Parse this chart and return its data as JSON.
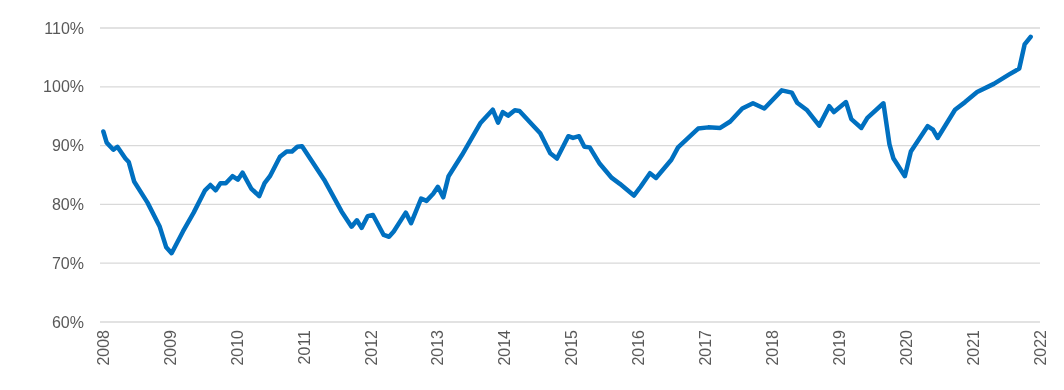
{
  "chart_data": {
    "type": "line",
    "xlim": [
      2007.95,
      2022
    ],
    "ylim": [
      60,
      110
    ],
    "xticks": [
      2008,
      2009,
      2010,
      2011,
      2012,
      2013,
      2014,
      2015,
      2016,
      2017,
      2018,
      2019,
      2020,
      2021,
      2022
    ],
    "yticks": [
      {
        "value": 60,
        "label": "60%"
      },
      {
        "value": 70,
        "label": "70%"
      },
      {
        "value": 80,
        "label": "80%"
      },
      {
        "value": 90,
        "label": "90%"
      },
      {
        "value": 100,
        "label": "100%"
      },
      {
        "value": 110,
        "label": "110%"
      }
    ],
    "grid": "y",
    "marker": "none",
    "line_style": "solid",
    "series": [
      {
        "color": "#0070c0",
        "x": [
          2008.0,
          2008.05,
          2008.15,
          2008.21,
          2008.33,
          2008.38,
          2008.46,
          2008.66,
          2008.84,
          2008.94,
          2009.02,
          2009.19,
          2009.35,
          2009.52,
          2009.6,
          2009.68,
          2009.75,
          2009.83,
          2009.93,
          2010.01,
          2010.08,
          2010.21,
          2010.33,
          2010.41,
          2010.49,
          2010.64,
          2010.74,
          2010.82,
          2010.9,
          2010.97,
          2011.3,
          2011.56,
          2011.71,
          2011.79,
          2011.86,
          2011.95,
          2012.03,
          2012.19,
          2012.27,
          2012.34,
          2012.52,
          2012.6,
          2012.75,
          2012.83,
          2012.93,
          2013.0,
          2013.08,
          2013.16,
          2013.36,
          2013.64,
          2013.82,
          2013.9,
          2013.97,
          2014.05,
          2014.15,
          2014.22,
          2014.53,
          2014.68,
          2014.78,
          2014.95,
          2015.02,
          2015.11,
          2015.19,
          2015.27,
          2015.42,
          2015.6,
          2015.72,
          2015.93,
          2016.03,
          2016.17,
          2016.26,
          2016.49,
          2016.59,
          2016.89,
          2017.04,
          2017.22,
          2017.37,
          2017.55,
          2017.71,
          2017.88,
          2018.14,
          2018.29,
          2018.37,
          2018.52,
          2018.7,
          2018.85,
          2018.92,
          2019.1,
          2019.18,
          2019.33,
          2019.42,
          2019.66,
          2019.75,
          2019.81,
          2019.98,
          2020.07,
          2020.32,
          2020.4,
          2020.47,
          2020.73,
          2020.88,
          2021.06,
          2021.31,
          2021.54,
          2021.69,
          2021.77,
          2021.86
        ],
        "values": [
          92.4,
          90.5,
          89.3,
          89.8,
          87.8,
          87.2,
          83.9,
          80.3,
          76.3,
          72.7,
          71.7,
          75.4,
          78.6,
          82.4,
          83.3,
          82.4,
          83.6,
          83.6,
          84.8,
          84.2,
          85.4,
          82.7,
          81.4,
          83.6,
          84.8,
          88.1,
          89.0,
          89.0,
          89.8,
          89.9,
          84.2,
          78.8,
          76.2,
          77.3,
          76.0,
          78.0,
          78.2,
          74.8,
          74.5,
          75.4,
          78.6,
          76.8,
          81.0,
          80.6,
          81.8,
          83.0,
          81.2,
          84.8,
          88.4,
          93.9,
          96.1,
          93.9,
          95.7,
          95.1,
          96.0,
          95.9,
          92.1,
          88.7,
          87.8,
          91.6,
          91.3,
          91.6,
          89.8,
          89.7,
          86.9,
          84.5,
          83.5,
          81.5,
          83.0,
          85.3,
          84.5,
          87.6,
          89.7,
          92.9,
          93.1,
          93.0,
          94.1,
          96.3,
          97.2,
          96.3,
          99.4,
          99.0,
          97.3,
          96.0,
          93.4,
          96.7,
          95.7,
          97.4,
          94.5,
          93.0,
          94.7,
          97.2,
          90.2,
          87.8,
          84.8,
          89.0,
          93.3,
          92.7,
          91.3,
          96.1,
          97.4,
          99.1,
          100.5,
          102.1,
          103.1,
          107.2,
          108.5
        ]
      }
    ]
  }
}
